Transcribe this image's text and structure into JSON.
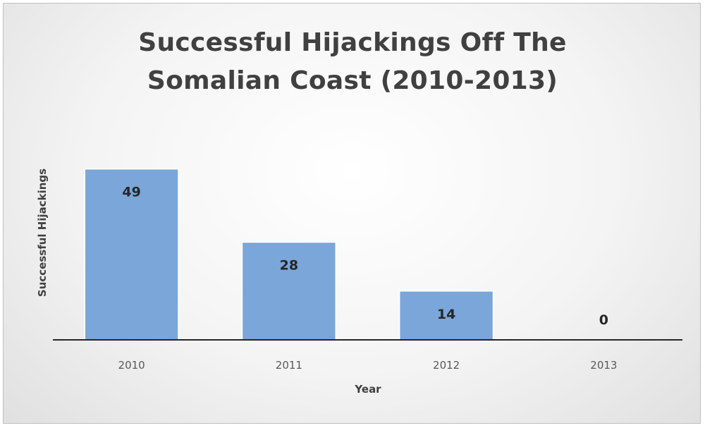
{
  "chart_data": {
    "type": "bar",
    "title_lines": [
      "Successful Hijackings Off The",
      "Somalian Coast (2010-2013)"
    ],
    "title": "Successful Hijackings Off The Somalian Coast (2010-2013)",
    "xlabel": "Year",
    "ylabel": "Successful Hijackings",
    "categories": [
      "2010",
      "2011",
      "2012",
      "2013"
    ],
    "values": [
      49,
      28,
      14,
      0
    ],
    "ylim": [
      0,
      55
    ],
    "grid": false,
    "legend": "none",
    "bar_color": "#7aa6d9",
    "axis_color": "#262626"
  }
}
